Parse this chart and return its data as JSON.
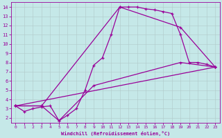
{
  "xlabel": "Windchill (Refroidissement éolien,°C)",
  "bg_color": "#c5e8e8",
  "line_color": "#990099",
  "grid_color": "#b0c8c8",
  "xlim": [
    -0.5,
    23.5
  ],
  "ylim": [
    1.5,
    14.5
  ],
  "xticks": [
    0,
    1,
    2,
    3,
    4,
    5,
    6,
    7,
    8,
    9,
    10,
    11,
    12,
    13,
    14,
    15,
    16,
    17,
    18,
    19,
    20,
    21,
    22,
    23
  ],
  "yticks": [
    2,
    3,
    4,
    5,
    6,
    7,
    8,
    9,
    10,
    11,
    12,
    13,
    14
  ],
  "series1_x": [
    0,
    1,
    2,
    3,
    4,
    5,
    6,
    7,
    8,
    9,
    10,
    11,
    12,
    13,
    14,
    15,
    16,
    17,
    18,
    19,
    20,
    21,
    22,
    23
  ],
  "series1_y": [
    3.3,
    2.7,
    3.0,
    3.2,
    3.3,
    1.7,
    2.3,
    3.0,
    5.0,
    7.7,
    8.5,
    11.0,
    14.0,
    14.0,
    14.0,
    13.8,
    13.7,
    13.5,
    13.3,
    11.0,
    8.0,
    8.0,
    7.8,
    7.5
  ],
  "series2_x": [
    0,
    23
  ],
  "series2_y": [
    3.3,
    7.5
  ],
  "series3_x": [
    0,
    3,
    5,
    9,
    19,
    23
  ],
  "series3_y": [
    3.3,
    3.3,
    1.7,
    5.5,
    8.0,
    7.5
  ],
  "series4_x": [
    0,
    3,
    12,
    19,
    23
  ],
  "series4_y": [
    3.3,
    3.3,
    14.0,
    11.8,
    7.5
  ]
}
